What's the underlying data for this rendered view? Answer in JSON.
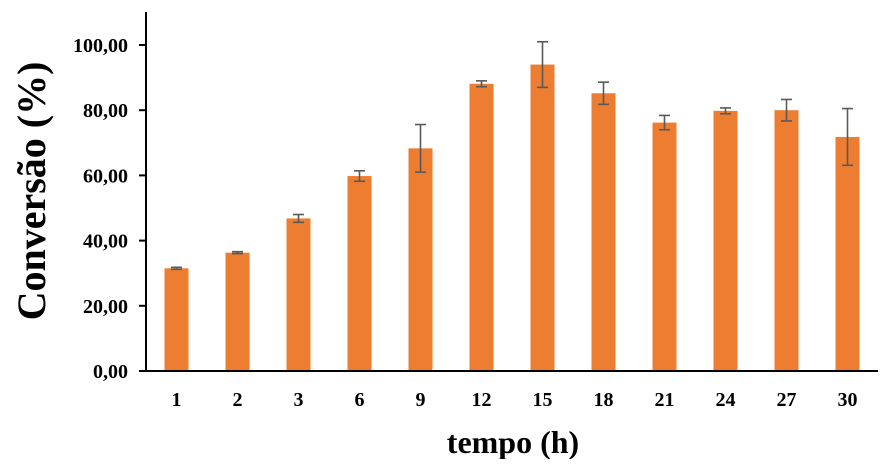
{
  "chart_data": {
    "type": "bar",
    "categories": [
      "1",
      "2",
      "3",
      "6",
      "9",
      "12",
      "15",
      "18",
      "21",
      "24",
      "27",
      "30"
    ],
    "values": [
      31.5,
      36.3,
      46.8,
      59.8,
      68.3,
      88.1,
      94.0,
      85.2,
      76.2,
      79.8,
      80.0,
      71.8
    ],
    "errors": [
      0.3,
      0.3,
      1.2,
      1.6,
      7.3,
      0.9,
      7.0,
      3.4,
      2.2,
      0.9,
      3.3,
      8.7
    ],
    "xlabel": "tempo (h)",
    "ylabel": "Conversão (%)",
    "ylim": [
      0,
      100
    ],
    "yticks": [
      "0,00",
      "20,00",
      "40,00",
      "60,00",
      "80,00",
      "100,00"
    ],
    "bar_color": "#ED7D31",
    "error_bar_color": "#595959",
    "grid": false,
    "legend": "none"
  }
}
